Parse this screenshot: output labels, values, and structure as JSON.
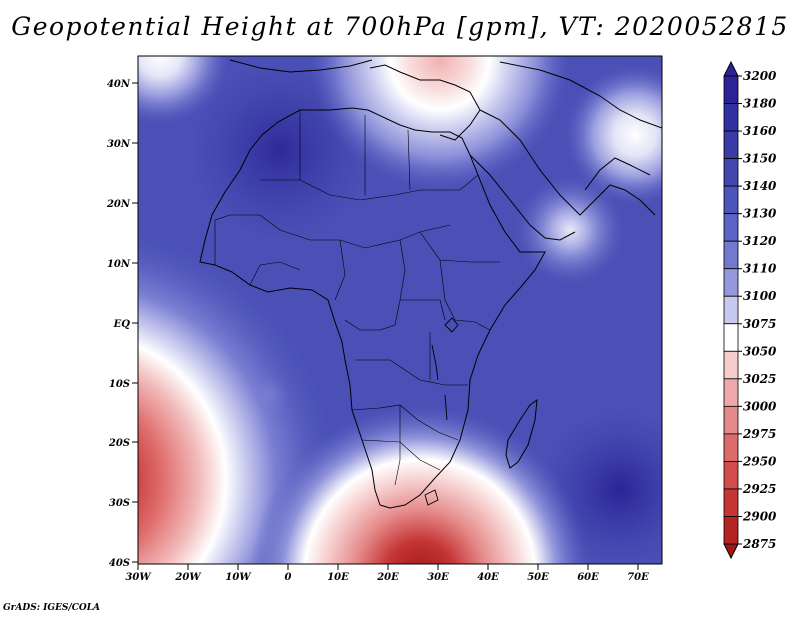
{
  "title": "Geopotential Height at 700hPa [gpm], VT: 2020052815",
  "footer": "GrADS: IGES/COLA",
  "map": {
    "lat_labels": [
      "40N",
      "30N",
      "20N",
      "10N",
      "EQ",
      "10S",
      "20S",
      "30S",
      "40S"
    ],
    "lon_labels": [
      "30W",
      "20W",
      "10W",
      "0",
      "10E",
      "20E",
      "30E",
      "40E",
      "50E",
      "60E",
      "70E"
    ],
    "lat_range": [
      -40,
      45
    ],
    "lon_range": [
      -30,
      75
    ]
  },
  "colorbar": {
    "levels": [
      "3200",
      "3180",
      "3160",
      "3150",
      "3140",
      "3130",
      "3120",
      "3110",
      "3100",
      "3075",
      "3050",
      "3025",
      "3000",
      "2975",
      "2950",
      "2925",
      "2900",
      "2875"
    ],
    "colors": [
      "#2b2396",
      "#33309f",
      "#3a3ba8",
      "#4247b0",
      "#4c55ba",
      "#5a64c4",
      "#7279cf",
      "#9598dc",
      "#c7c9ee",
      "#ffffff",
      "#f6cccc",
      "#eeaaaa",
      "#e58a8a",
      "#dc6b6b",
      "#d24c4c",
      "#c53535",
      "#b52323",
      "#a01818"
    ]
  }
}
